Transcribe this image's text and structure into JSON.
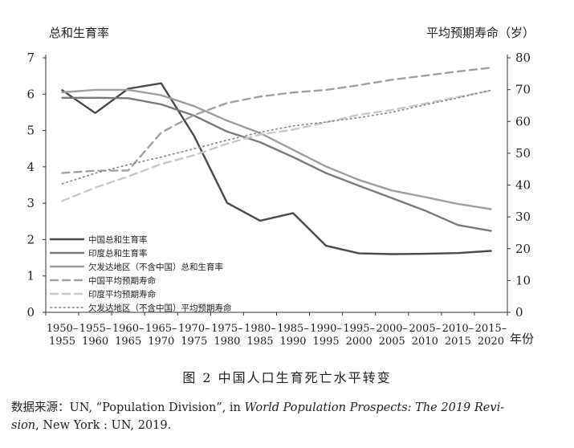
{
  "chart_data": {
    "type": "line",
    "y_left_label": "总和生育率",
    "y_right_label": "平均预期寿命（岁）",
    "x_axis_unit": "年份",
    "categories": [
      [
        "1950–",
        "1955"
      ],
      [
        "1955–",
        "1960"
      ],
      [
        "1960–",
        "1965"
      ],
      [
        "1965–",
        "1970"
      ],
      [
        "1970–",
        "1975"
      ],
      [
        "1975–",
        "1980"
      ],
      [
        "1980–",
        "1985"
      ],
      [
        "1985–",
        "1990"
      ],
      [
        "1990–",
        "1995"
      ],
      [
        "1995–",
        "2000"
      ],
      [
        "2000–",
        "2005"
      ],
      [
        "2005–",
        "2010"
      ],
      [
        "2010–",
        "2015"
      ],
      [
        "2015–",
        "2020"
      ]
    ],
    "y_left_range": [
      0,
      7
    ],
    "y_left_ticks": [
      "0",
      "1",
      "2",
      "3",
      "4",
      "5",
      "6",
      "7"
    ],
    "y_right_range": [
      0,
      80
    ],
    "y_right_ticks": [
      "0",
      "10",
      "20",
      "30",
      "40",
      "50",
      "60",
      "70",
      "80"
    ],
    "grid": false,
    "legend_position": "bottom-left",
    "series": [
      {
        "name": "中国总和生育率",
        "axis": "left",
        "color": "#4a4a4a",
        "dash": "solid",
        "values": [
          6.11,
          5.48,
          6.15,
          6.3,
          4.85,
          3.01,
          2.52,
          2.73,
          1.83,
          1.62,
          1.6,
          1.61,
          1.63,
          1.69
        ]
      },
      {
        "name": "印度总和生育率",
        "axis": "left",
        "color": "#7a7a7a",
        "dash": "solid",
        "values": [
          5.9,
          5.9,
          5.89,
          5.72,
          5.41,
          4.97,
          4.68,
          4.27,
          3.83,
          3.48,
          3.14,
          2.8,
          2.4,
          2.24
        ]
      },
      {
        "name": "欠发达地区（不含中国）总和生育率",
        "axis": "left",
        "color": "#9e9e9e",
        "dash": "solid",
        "values": [
          6.05,
          6.12,
          6.12,
          5.97,
          5.67,
          5.27,
          4.93,
          4.47,
          4.01,
          3.64,
          3.35,
          3.17,
          2.98,
          2.84
        ]
      },
      {
        "name": "中国平均预期寿命",
        "axis": "right",
        "color": "#a0a0a0",
        "dash": "long",
        "values": [
          43.8,
          44.5,
          44.6,
          56.5,
          62.0,
          65.8,
          67.8,
          69.1,
          69.9,
          71.4,
          73.1,
          74.4,
          75.7,
          76.9
        ]
      },
      {
        "name": "印度平均预期寿命",
        "axis": "right",
        "color": "#c8c8c8",
        "dash": "long",
        "values": [
          35.0,
          39.2,
          42.7,
          46.6,
          49.4,
          53.0,
          55.9,
          57.4,
          59.7,
          62.1,
          63.6,
          65.6,
          67.7,
          69.7
        ]
      },
      {
        "name": "欠发达地区（不含中国）平均预期寿命",
        "axis": "right",
        "color": "#8a8a8a",
        "dash": "dot",
        "values": [
          40.4,
          43.7,
          46.4,
          48.8,
          51.4,
          54.1,
          56.6,
          58.6,
          59.8,
          61.2,
          62.9,
          65.2,
          67.4,
          69.8
        ]
      }
    ]
  },
  "caption": "图 2    中国人口生育死亡水平转变",
  "source": {
    "prefix": "数据来源：UN, “Population Division”, in ",
    "italic1": "World Population Prospects: The 2019 Revi-",
    "italic2": "sion",
    "suffix": ", New York : UN, 2019."
  }
}
